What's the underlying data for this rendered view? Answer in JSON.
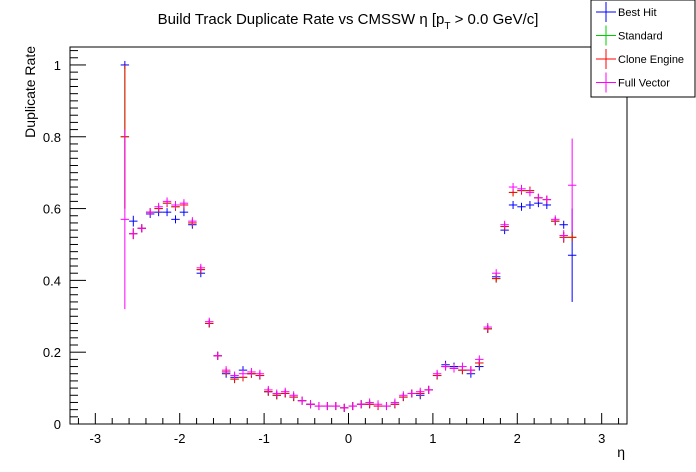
{
  "title_main": "Build Track Duplicate Rate vs CMSSW η [p",
  "title_sub": "T",
  "title_tail": " > 0.0 GeV/c]",
  "colors": {
    "best_hit": "#0000ff",
    "standard": "#00cc00",
    "clone_engine": "#ff0000",
    "full_vector": "#ff00ff"
  },
  "chart_data": {
    "type": "scatter",
    "xlabel": "η",
    "ylabel": "Duplicate Rate",
    "xlim": [
      -3.3,
      3.3
    ],
    "ylim": [
      0,
      1.05
    ],
    "grid": false,
    "legend_position": "top-right",
    "x_ticks": [
      -3,
      -2,
      -1,
      0,
      1,
      2,
      3
    ],
    "x_tick_labels": [
      "-3",
      "-2",
      "-1",
      "0",
      "1",
      "2",
      "3"
    ],
    "y_ticks": [
      0,
      0.2,
      0.4,
      0.6,
      0.8,
      1
    ],
    "y_tick_labels": [
      "0",
      "0.2",
      "0.4",
      "0.6",
      "0.8",
      "1"
    ],
    "bin_half_width": 0.05,
    "x": [
      -2.65,
      -2.55,
      -2.45,
      -2.35,
      -2.25,
      -2.15,
      -2.05,
      -1.95,
      -1.85,
      -1.75,
      -1.65,
      -1.55,
      -1.45,
      -1.35,
      -1.25,
      -1.15,
      -1.05,
      -0.95,
      -0.85,
      -0.75,
      -0.65,
      -0.55,
      -0.45,
      -0.35,
      -0.25,
      -0.15,
      -0.05,
      0.05,
      0.15,
      0.25,
      0.35,
      0.45,
      0.55,
      0.65,
      0.75,
      0.85,
      0.95,
      1.05,
      1.15,
      1.25,
      1.35,
      1.45,
      1.55,
      1.65,
      1.75,
      1.85,
      1.95,
      2.05,
      2.15,
      2.25,
      2.35,
      2.45,
      2.55,
      2.65
    ],
    "series": [
      {
        "name": "Best Hit",
        "values": [
          1.0,
          0.565,
          0.545,
          0.585,
          0.59,
          0.59,
          0.57,
          0.59,
          0.555,
          0.42,
          0.28,
          0.19,
          0.14,
          0.13,
          0.15,
          0.14,
          0.135,
          0.09,
          0.08,
          0.085,
          0.075,
          0.065,
          0.055,
          0.05,
          0.05,
          0.05,
          0.045,
          0.05,
          0.055,
          0.055,
          0.05,
          0.05,
          0.055,
          0.075,
          0.085,
          0.08,
          0.095,
          0.135,
          0.165,
          0.16,
          0.15,
          0.14,
          0.16,
          0.265,
          0.41,
          0.54,
          0.61,
          0.605,
          0.61,
          0.615,
          0.61,
          0.565,
          0.555,
          0.47
        ],
        "errors": [
          0.0,
          0.015,
          0.01,
          0.01,
          0.01,
          0.01,
          0.01,
          0.01,
          0.01,
          0.01,
          0.01,
          0.01,
          0.01,
          0.01,
          0.01,
          0.01,
          0.01,
          0.005,
          0.005,
          0.005,
          0.005,
          0.005,
          0.005,
          0.005,
          0.005,
          0.005,
          0.005,
          0.005,
          0.005,
          0.005,
          0.005,
          0.005,
          0.005,
          0.005,
          0.005,
          0.005,
          0.005,
          0.01,
          0.01,
          0.01,
          0.01,
          0.01,
          0.01,
          0.01,
          0.01,
          0.01,
          0.01,
          0.01,
          0.01,
          0.01,
          0.01,
          0.01,
          0.01,
          0.13
        ]
      },
      {
        "name": "Standard",
        "values": [
          0.8,
          0.53,
          0.545,
          0.59,
          0.6,
          0.615,
          0.605,
          0.61,
          0.56,
          0.43,
          0.28,
          0.19,
          0.145,
          0.125,
          0.13,
          0.14,
          0.135,
          0.09,
          0.08,
          0.085,
          0.075,
          0.065,
          0.055,
          0.05,
          0.05,
          0.05,
          0.045,
          0.05,
          0.055,
          0.055,
          0.05,
          0.05,
          0.055,
          0.075,
          0.085,
          0.085,
          0.095,
          0.135,
          0.16,
          0.155,
          0.15,
          0.15,
          0.17,
          0.265,
          0.405,
          0.55,
          0.645,
          0.65,
          0.65,
          0.63,
          0.625,
          0.565,
          0.52,
          0.52
        ],
        "errors": [
          0.2,
          0.015,
          0.01,
          0.01,
          0.01,
          0.01,
          0.01,
          0.01,
          0.01,
          0.01,
          0.01,
          0.01,
          0.01,
          0.01,
          0.01,
          0.01,
          0.01,
          0.005,
          0.005,
          0.005,
          0.005,
          0.005,
          0.005,
          0.005,
          0.005,
          0.005,
          0.005,
          0.005,
          0.005,
          0.005,
          0.005,
          0.005,
          0.005,
          0.005,
          0.005,
          0.005,
          0.005,
          0.01,
          0.01,
          0.01,
          0.01,
          0.01,
          0.01,
          0.01,
          0.01,
          0.01,
          0.01,
          0.01,
          0.01,
          0.01,
          0.01,
          0.01,
          0.015,
          0.0
        ]
      },
      {
        "name": "Clone Engine",
        "values": [
          0.8,
          0.53,
          0.545,
          0.59,
          0.6,
          0.615,
          0.605,
          0.61,
          0.56,
          0.43,
          0.28,
          0.19,
          0.145,
          0.125,
          0.13,
          0.14,
          0.135,
          0.09,
          0.08,
          0.085,
          0.075,
          0.065,
          0.055,
          0.05,
          0.05,
          0.05,
          0.045,
          0.05,
          0.055,
          0.055,
          0.05,
          0.05,
          0.055,
          0.075,
          0.085,
          0.085,
          0.095,
          0.135,
          0.16,
          0.155,
          0.15,
          0.15,
          0.17,
          0.265,
          0.405,
          0.55,
          0.645,
          0.65,
          0.65,
          0.63,
          0.625,
          0.565,
          0.52,
          0.52
        ],
        "errors": [
          0.2,
          0.015,
          0.01,
          0.01,
          0.01,
          0.01,
          0.01,
          0.01,
          0.01,
          0.01,
          0.01,
          0.01,
          0.01,
          0.01,
          0.01,
          0.01,
          0.01,
          0.005,
          0.005,
          0.005,
          0.005,
          0.005,
          0.005,
          0.005,
          0.005,
          0.005,
          0.005,
          0.005,
          0.005,
          0.005,
          0.005,
          0.005,
          0.005,
          0.005,
          0.005,
          0.005,
          0.005,
          0.01,
          0.01,
          0.01,
          0.01,
          0.01,
          0.01,
          0.01,
          0.01,
          0.01,
          0.01,
          0.01,
          0.01,
          0.01,
          0.01,
          0.01,
          0.015,
          0.0
        ]
      },
      {
        "name": "Full Vector",
        "values": [
          0.57,
          0.53,
          0.545,
          0.59,
          0.605,
          0.62,
          0.61,
          0.615,
          0.565,
          0.435,
          0.285,
          0.19,
          0.15,
          0.135,
          0.14,
          0.145,
          0.14,
          0.095,
          0.085,
          0.09,
          0.08,
          0.065,
          0.055,
          0.05,
          0.05,
          0.05,
          0.045,
          0.05,
          0.055,
          0.06,
          0.055,
          0.05,
          0.06,
          0.08,
          0.085,
          0.09,
          0.095,
          0.14,
          0.16,
          0.155,
          0.16,
          0.15,
          0.18,
          0.27,
          0.42,
          0.555,
          0.66,
          0.655,
          0.645,
          0.63,
          0.625,
          0.57,
          0.525,
          0.665
        ],
        "errors": [
          0.25,
          0.015,
          0.01,
          0.01,
          0.01,
          0.01,
          0.01,
          0.01,
          0.01,
          0.01,
          0.01,
          0.01,
          0.01,
          0.01,
          0.01,
          0.01,
          0.01,
          0.005,
          0.005,
          0.005,
          0.005,
          0.005,
          0.005,
          0.005,
          0.005,
          0.005,
          0.005,
          0.005,
          0.005,
          0.005,
          0.005,
          0.005,
          0.005,
          0.005,
          0.005,
          0.005,
          0.005,
          0.01,
          0.01,
          0.01,
          0.01,
          0.01,
          0.01,
          0.01,
          0.01,
          0.01,
          0.01,
          0.01,
          0.01,
          0.01,
          0.01,
          0.01,
          0.015,
          0.13
        ]
      }
    ]
  }
}
